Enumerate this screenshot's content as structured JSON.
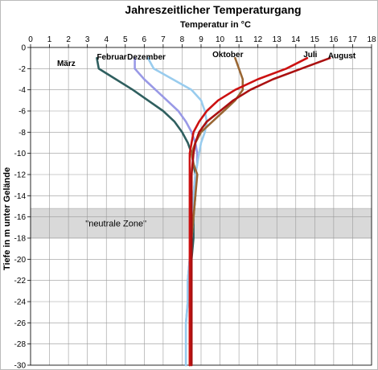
{
  "chart_data": {
    "type": "line",
    "title": "Jahreszeitlicher Temperaturgang",
    "xlabel": "Temperatur in °C",
    "ylabel": "Tiefe in m unter Gelände",
    "xlim": [
      0,
      18
    ],
    "ylim": [
      -30,
      0
    ],
    "x_ticks": [
      0,
      1,
      2,
      3,
      4,
      5,
      6,
      7,
      8,
      9,
      10,
      11,
      12,
      13,
      14,
      15,
      16,
      17,
      18
    ],
    "y_ticks": [
      0,
      -2,
      -4,
      -6,
      -8,
      -10,
      -12,
      -14,
      -16,
      -18,
      -20,
      -22,
      -24,
      -26,
      -28,
      -30
    ],
    "grid": true,
    "x_axis_position": "top",
    "zone": {
      "label": "\"neutrale Zone\"",
      "y_from": -15.2,
      "y_to": -18.0,
      "color": "#d9d9d9"
    },
    "series": [
      {
        "name": "März",
        "color": "#2f5f5f",
        "points": [
          [
            3.5,
            -1.0
          ],
          [
            3.6,
            -2.0
          ],
          [
            4.5,
            -3.0
          ],
          [
            5.4,
            -4.0
          ],
          [
            6.2,
            -5.0
          ],
          [
            7.0,
            -6.0
          ],
          [
            7.6,
            -7.0
          ],
          [
            8.0,
            -8.0
          ],
          [
            8.3,
            -9.0
          ],
          [
            8.5,
            -10.0
          ],
          [
            8.6,
            -11.0
          ],
          [
            8.7,
            -12.0
          ],
          [
            8.7,
            -14.0
          ],
          [
            8.6,
            -16.0
          ],
          [
            8.6,
            -18.0
          ],
          [
            8.5,
            -20.0
          ],
          [
            8.5,
            -22.0
          ],
          [
            8.5,
            -24.0
          ],
          [
            8.5,
            -26.0
          ],
          [
            8.5,
            -28.0
          ],
          [
            8.4,
            -30.0
          ]
        ]
      },
      {
        "name": "Februar",
        "color": "#9999e6",
        "points": [
          [
            5.5,
            -1.0
          ],
          [
            5.5,
            -2.0
          ],
          [
            6.0,
            -3.0
          ],
          [
            6.6,
            -4.0
          ],
          [
            7.2,
            -5.0
          ],
          [
            7.8,
            -6.0
          ],
          [
            8.2,
            -7.0
          ],
          [
            8.5,
            -8.0
          ],
          [
            8.7,
            -9.0
          ],
          [
            8.8,
            -10.0
          ],
          [
            8.8,
            -11.0
          ],
          [
            8.7,
            -12.0
          ],
          [
            8.6,
            -14.0
          ],
          [
            8.5,
            -16.0
          ],
          [
            8.5,
            -18.0
          ],
          [
            8.4,
            -20.0
          ],
          [
            8.3,
            -22.0
          ],
          [
            8.3,
            -24.0
          ],
          [
            8.2,
            -26.0
          ],
          [
            8.2,
            -28.0
          ],
          [
            8.2,
            -30.0
          ]
        ]
      },
      {
        "name": "Dezember",
        "color": "#99ccee",
        "points": [
          [
            6.2,
            -1.0
          ],
          [
            6.5,
            -2.0
          ],
          [
            7.5,
            -3.0
          ],
          [
            8.5,
            -4.0
          ],
          [
            9.0,
            -5.0
          ],
          [
            9.2,
            -6.0
          ],
          [
            9.3,
            -7.0
          ],
          [
            9.2,
            -8.0
          ],
          [
            9.0,
            -9.0
          ],
          [
            8.9,
            -10.0
          ],
          [
            8.8,
            -11.0
          ],
          [
            8.7,
            -12.0
          ],
          [
            8.6,
            -14.0
          ],
          [
            8.6,
            -16.0
          ],
          [
            8.5,
            -18.0
          ],
          [
            8.4,
            -20.0
          ],
          [
            8.3,
            -22.0
          ],
          [
            8.3,
            -24.0
          ],
          [
            8.2,
            -26.0
          ],
          [
            8.2,
            -28.0
          ],
          [
            8.2,
            -30.0
          ]
        ]
      },
      {
        "name": "Oktober",
        "color": "#996633",
        "points": [
          [
            10.8,
            -1.0
          ],
          [
            11.0,
            -2.0
          ],
          [
            11.2,
            -3.0
          ],
          [
            11.2,
            -4.0
          ],
          [
            10.8,
            -5.0
          ],
          [
            10.2,
            -6.0
          ],
          [
            9.6,
            -7.0
          ],
          [
            9.0,
            -8.0
          ],
          [
            8.7,
            -9.0
          ],
          [
            8.5,
            -10.0
          ],
          [
            8.6,
            -11.0
          ],
          [
            8.8,
            -12.0
          ],
          [
            8.7,
            -14.0
          ],
          [
            8.6,
            -16.0
          ],
          [
            8.5,
            -18.0
          ],
          [
            8.5,
            -20.0
          ],
          [
            8.5,
            -22.0
          ],
          [
            8.4,
            -24.0
          ],
          [
            8.4,
            -26.0
          ],
          [
            8.4,
            -28.0
          ],
          [
            8.4,
            -30.0
          ]
        ]
      },
      {
        "name": "Juli",
        "color": "#cc1111",
        "points": [
          [
            14.6,
            -1.0
          ],
          [
            13.5,
            -2.0
          ],
          [
            12.0,
            -3.0
          ],
          [
            10.8,
            -4.0
          ],
          [
            9.9,
            -5.0
          ],
          [
            9.3,
            -6.0
          ],
          [
            8.9,
            -7.0
          ],
          [
            8.6,
            -8.0
          ],
          [
            8.5,
            -9.0
          ],
          [
            8.4,
            -10.0
          ],
          [
            8.4,
            -12.0
          ],
          [
            8.4,
            -14.0
          ],
          [
            8.4,
            -16.0
          ],
          [
            8.4,
            -18.0
          ],
          [
            8.4,
            -20.0
          ],
          [
            8.4,
            -22.0
          ],
          [
            8.4,
            -24.0
          ],
          [
            8.4,
            -26.0
          ],
          [
            8.4,
            -28.0
          ],
          [
            8.4,
            -30.0
          ]
        ]
      },
      {
        "name": "August",
        "color": "#aa1111",
        "points": [
          [
            15.8,
            -1.0
          ],
          [
            14.3,
            -2.0
          ],
          [
            12.8,
            -3.0
          ],
          [
            11.6,
            -4.0
          ],
          [
            10.7,
            -5.0
          ],
          [
            10.0,
            -6.0
          ],
          [
            9.3,
            -7.0
          ],
          [
            8.9,
            -8.0
          ],
          [
            8.7,
            -9.0
          ],
          [
            8.6,
            -10.0
          ],
          [
            8.5,
            -12.0
          ],
          [
            8.5,
            -14.0
          ],
          [
            8.5,
            -16.0
          ],
          [
            8.5,
            -18.0
          ],
          [
            8.5,
            -20.0
          ],
          [
            8.5,
            -22.0
          ],
          [
            8.5,
            -24.0
          ],
          [
            8.5,
            -26.0
          ],
          [
            8.5,
            -28.0
          ],
          [
            8.5,
            -30.0
          ]
        ]
      }
    ],
    "series_label_positions": [
      {
        "name": "März",
        "x": 1.4,
        "y": -1.5
      },
      {
        "name": "Februar",
        "x": 3.5,
        "y": -0.9
      },
      {
        "name": "Dezember",
        "x": 5.1,
        "y": -0.9
      },
      {
        "name": "Oktober",
        "x": 9.6,
        "y": -0.7
      },
      {
        "name": "Juli",
        "x": 14.4,
        "y": -0.7
      },
      {
        "name": "August",
        "x": 15.7,
        "y": -0.8
      }
    ]
  }
}
